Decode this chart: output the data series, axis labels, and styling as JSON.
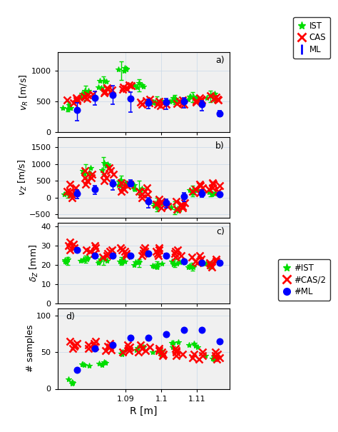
{
  "R_positions": [
    1.073,
    1.079,
    1.085,
    1.091,
    1.097,
    1.103,
    1.109,
    1.115,
    1.121
  ],
  "panel_a": {
    "IST_y": [
      420,
      620,
      780,
      1000,
      760,
      500,
      530,
      570,
      580
    ],
    "IST_yerr_lo": [
      80,
      100,
      120,
      150,
      100,
      60,
      70,
      80,
      90
    ],
    "IST_yerr_hi": [
      80,
      130,
      120,
      150,
      100,
      80,
      70,
      80,
      90
    ],
    "CAS_clusters": [
      [
        480,
        510,
        540,
        560,
        520
      ],
      [
        570,
        600,
        620,
        580,
        550
      ],
      [
        660,
        700,
        720,
        680,
        640
      ],
      [
        710,
        750,
        770,
        730,
        700
      ],
      [
        480,
        510,
        530,
        490,
        460
      ],
      [
        450,
        480,
        500,
        460,
        430
      ],
      [
        470,
        500,
        520,
        480,
        450
      ],
      [
        510,
        540,
        560,
        520,
        490
      ],
      [
        540,
        570,
        590,
        550,
        520
      ]
    ],
    "ML_y": [
      360,
      560,
      600,
      550,
      480,
      490,
      500,
      450,
      305
    ],
    "ML_yerr_lo": [
      170,
      120,
      150,
      220,
      100,
      120,
      100,
      100,
      50
    ],
    "ML_yerr_hi": [
      120,
      100,
      150,
      100,
      60,
      60,
      60,
      60,
      50
    ],
    "ylabel": "$v_R$ [m/s]",
    "ylim": [
      0,
      1300
    ],
    "yticks": [
      0,
      500,
      1000
    ],
    "label": "a)"
  },
  "panel_b": {
    "IST_y": [
      100,
      800,
      900,
      450,
      300,
      -200,
      -300,
      200,
      150
    ],
    "IST_yerr_lo": [
      100,
      200,
      200,
      200,
      200,
      200,
      200,
      150,
      100
    ],
    "IST_yerr_hi": [
      100,
      200,
      300,
      200,
      200,
      200,
      200,
      150,
      100
    ],
    "CAS_clusters": [
      [
        100,
        200,
        300,
        400,
        0,
        200
      ],
      [
        500,
        600,
        700,
        800,
        400,
        600
      ],
      [
        600,
        700,
        800,
        900,
        500,
        700
      ],
      [
        200,
        350,
        450,
        300,
        250,
        400
      ],
      [
        100,
        200,
        300,
        0,
        100,
        200
      ],
      [
        -250,
        -150,
        -50,
        -200,
        -300,
        -100
      ],
      [
        -300,
        -200,
        -100,
        -250,
        -350,
        -150
      ],
      [
        200,
        300,
        400,
        250,
        150,
        350
      ],
      [
        250,
        350,
        450,
        300,
        200,
        400
      ]
    ],
    "ML_y": [
      130,
      250,
      430,
      430,
      -100,
      -150,
      50,
      130,
      100
    ],
    "ML_yerr_lo": [
      150,
      150,
      200,
      100,
      200,
      150,
      150,
      100,
      50
    ],
    "ML_yerr_hi": [
      100,
      100,
      100,
      100,
      100,
      100,
      100,
      100,
      50
    ],
    "ylabel": "$v_Z$ [m/s]",
    "ylim": [
      -600,
      1800
    ],
    "yticks": [
      -500,
      0,
      500,
      1000,
      1500
    ],
    "label": "b)"
  },
  "panel_c": {
    "IST_y": [
      22,
      23,
      22,
      22,
      21,
      20,
      21,
      19,
      20
    ],
    "IST_yerr_lo": [
      2,
      2,
      2,
      2,
      2,
      2,
      2,
      2,
      2
    ],
    "IST_yerr_hi": [
      2,
      2,
      2,
      2,
      2,
      2,
      2,
      2,
      2
    ],
    "CAS_clusters": [
      [
        28,
        30,
        32,
        29,
        31
      ],
      [
        26,
        28,
        30,
        27,
        29
      ],
      [
        24,
        26,
        28,
        25,
        27
      ],
      [
        25,
        27,
        29,
        26,
        28
      ],
      [
        25,
        27,
        29,
        26,
        28
      ],
      [
        25,
        27,
        29,
        26,
        28
      ],
      [
        24,
        26,
        28,
        25,
        27
      ],
      [
        21,
        23,
        25,
        22,
        24
      ],
      [
        19,
        21,
        23,
        20,
        22
      ]
    ],
    "ML_y": [
      28,
      25,
      25,
      25,
      26,
      25,
      22,
      21,
      21
    ],
    "ML_yerr_lo": [
      1,
      1,
      1,
      1,
      1,
      1,
      1,
      1,
      1
    ],
    "ML_yerr_hi": [
      1,
      1,
      1,
      1,
      1,
      1,
      1,
      1,
      1
    ],
    "ylabel": "$\\delta_Z$ [mm]",
    "ylim": [
      0,
      42
    ],
    "yticks": [
      0,
      10,
      20,
      30,
      40
    ],
    "label": "c)"
  },
  "panel_d": {
    "IST_y": [
      10,
      30,
      35,
      50,
      55,
      50,
      60,
      60,
      42
    ],
    "CAS_clusters": [
      [
        55,
        60,
        65,
        58,
        62
      ],
      [
        55,
        60,
        65,
        58,
        62
      ],
      [
        52,
        57,
        62,
        53,
        58
      ],
      [
        50,
        55,
        60,
        52,
        57
      ],
      [
        50,
        55,
        60,
        52,
        57
      ],
      [
        45,
        50,
        55,
        47,
        52
      ],
      [
        45,
        50,
        55,
        47,
        52
      ],
      [
        40,
        45,
        50,
        42,
        47
      ],
      [
        40,
        45,
        50,
        42,
        47
      ]
    ],
    "ML_y": [
      26,
      55,
      60,
      70,
      70,
      75,
      80,
      80,
      65
    ],
    "ylabel": "# samples",
    "ylim": [
      0,
      110
    ],
    "yticks": [
      0,
      50,
      100
    ],
    "label": "d)"
  },
  "colors": {
    "IST": "#00dd00",
    "CAS": "#ff0000",
    "ML": "#0000ff"
  },
  "xlabel": "R [m]",
  "xlim": [
    1.068,
    1.126
  ],
  "xtick_positions": [
    1.091,
    1.103,
    1.115
  ],
  "xtick_labels": [
    "1.09",
    "1.1",
    "1.11"
  ],
  "bg_color": "#f0f0f0"
}
